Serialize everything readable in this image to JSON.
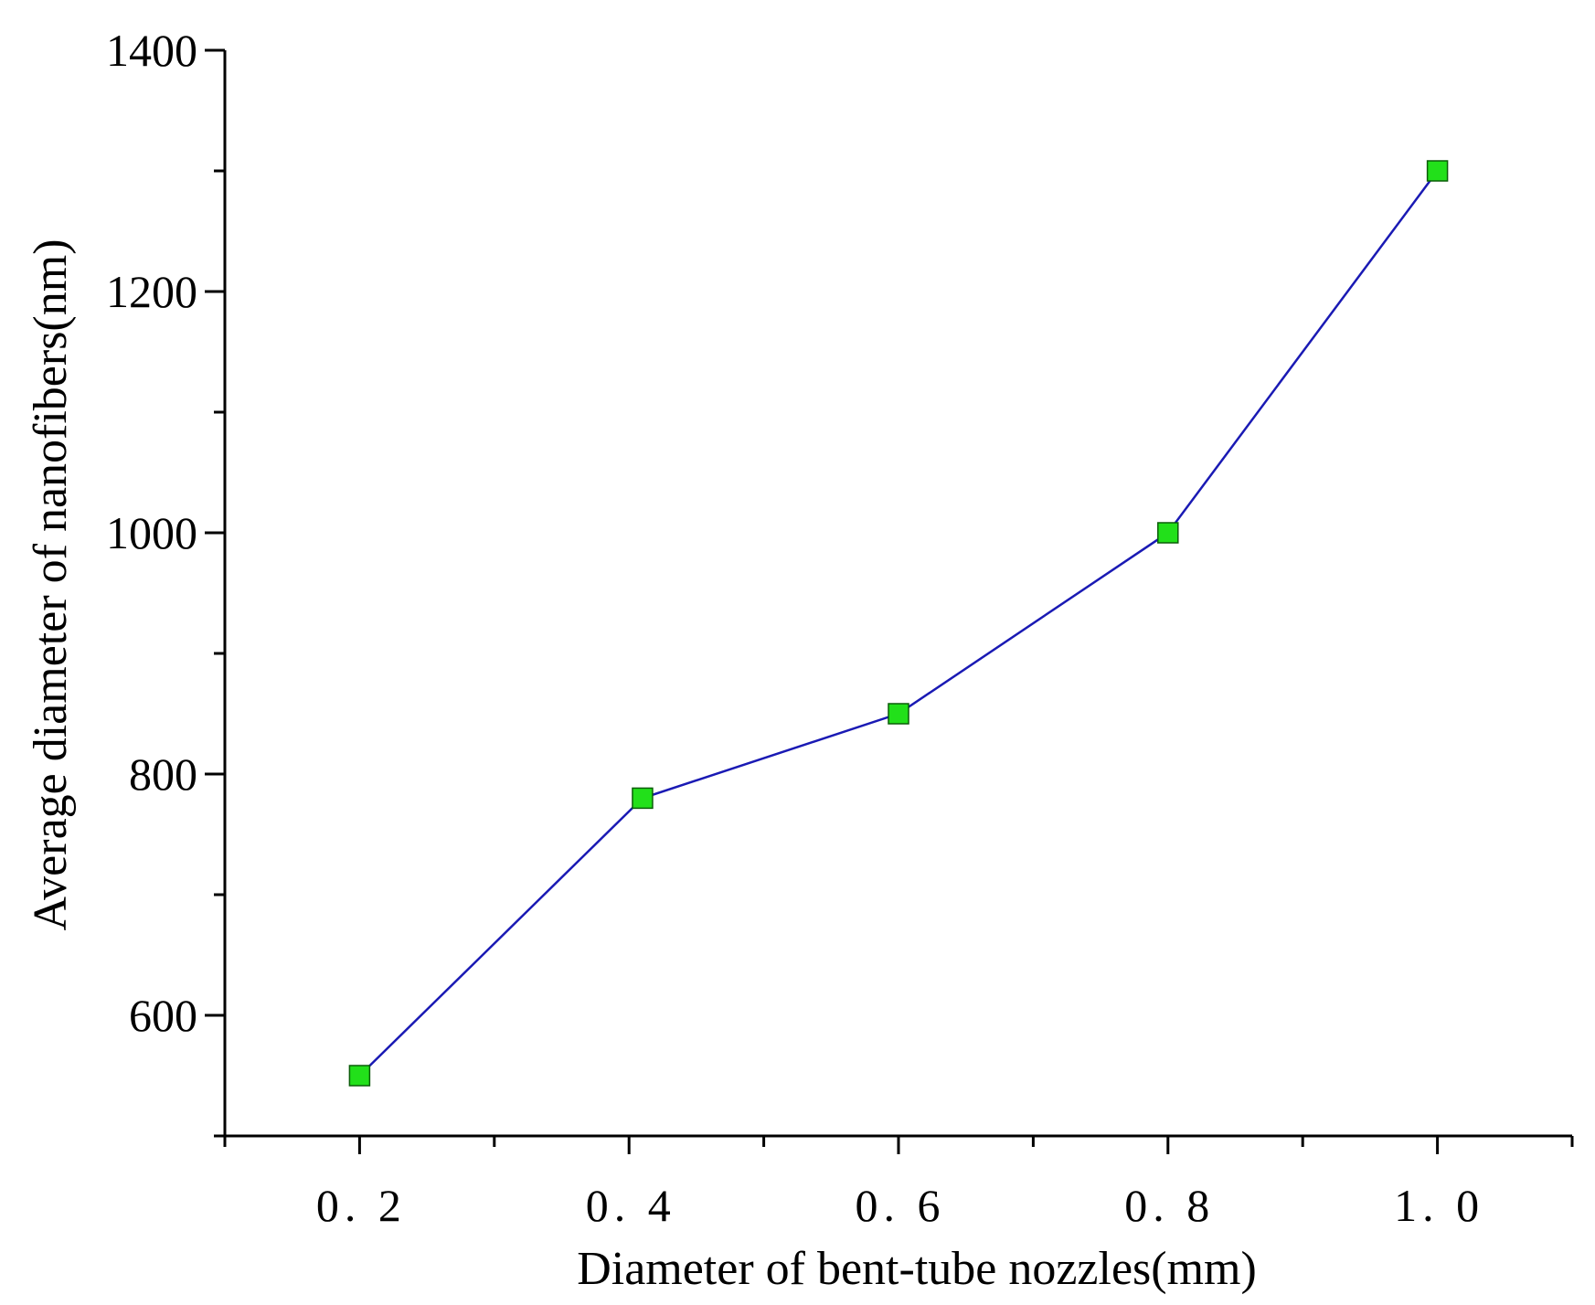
{
  "chart_data": {
    "type": "line",
    "title": "",
    "xlabel": "Diameter of bent-tube nozzles(mm)",
    "ylabel": "Average diameter of nanofibers(nm)",
    "xlim": [
      0.1,
      1.1
    ],
    "ylim": [
      500,
      1400
    ],
    "x_ticks": [
      0.2,
      0.4,
      0.6,
      0.8,
      1.0
    ],
    "x_tick_labels": [
      "0. 2",
      "0. 4",
      "0. 6",
      "0. 8",
      "1. 0"
    ],
    "x_minor_ticks": [
      0.1,
      0.3,
      0.5,
      0.7,
      0.9,
      1.1
    ],
    "y_ticks": [
      600,
      800,
      1000,
      1200,
      1400
    ],
    "y_tick_labels": [
      "600",
      "800",
      "1000",
      "1200",
      "1400"
    ],
    "y_minor_ticks": [
      500,
      700,
      900,
      1100,
      1300
    ],
    "grid": false,
    "legend": "none",
    "series": [
      {
        "x": [
          0.2,
          0.41,
          0.6,
          0.8,
          1.0
        ],
        "values": [
          550,
          780,
          850,
          1000,
          1300
        ],
        "line_color": "#1a1ab4",
        "marker": "square",
        "marker_color": "#22e01a"
      }
    ]
  }
}
